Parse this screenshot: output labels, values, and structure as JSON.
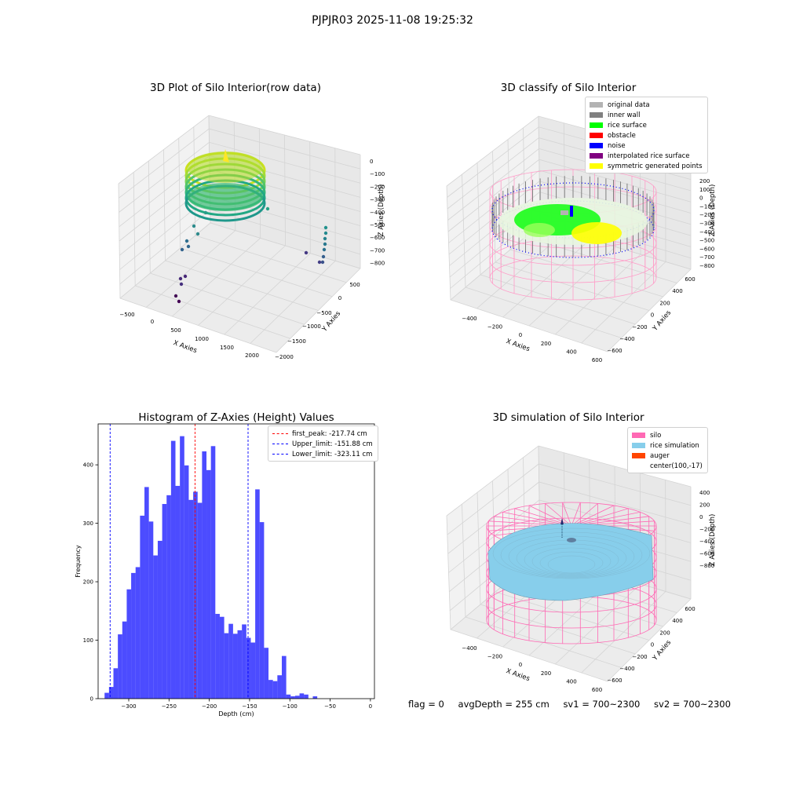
{
  "figure": {
    "suptitle": "PJPJR03 2025-11-08 19:25:32"
  },
  "chart_data": [
    {
      "type": "scatter",
      "title": "3D Plot of Silo Interior(row data)",
      "xlabel": "X Axies",
      "ylabel": "Y Axies",
      "zlabel": "Z Axies (Depth)",
      "x_ticks": [
        "−500",
        "0",
        "500",
        "1000",
        "1500",
        "2000"
      ],
      "y_ticks": [
        "500",
        "0",
        "−500",
        "−1000",
        "−1500",
        "−2000"
      ],
      "z_ticks": [
        "0",
        "−100",
        "−200",
        "−300",
        "−400",
        "−500",
        "−600",
        "−700",
        "−800"
      ],
      "colormap": "viridis",
      "grid": true
    },
    {
      "type": "scatter",
      "title": "3D classify of Silo Interior",
      "xlabel": "X Axies",
      "ylabel": "Y Axies",
      "zlabel": "Z Axies (Depth)",
      "x_ticks": [
        "−400",
        "−200",
        "0",
        "200",
        "400",
        "600"
      ],
      "y_ticks": [
        "600",
        "400",
        "200",
        "0",
        "−200",
        "−400",
        "−600"
      ],
      "z_ticks": [
        "200",
        "100",
        "0",
        "−100",
        "−200",
        "−300",
        "−400",
        "−500",
        "−600",
        "−700",
        "−800"
      ],
      "legend": [
        {
          "label": "original data",
          "color": "#b3b3b3"
        },
        {
          "label": "inner wall",
          "color": "#808080"
        },
        {
          "label": "rice surface",
          "color": "#00ff00"
        },
        {
          "label": "obstacle",
          "color": "#ff0000"
        },
        {
          "label": "noise",
          "color": "#0000ff"
        },
        {
          "label": "interpolated rice surface",
          "color": "#800080"
        },
        {
          "label": "symmetric generated points",
          "color": "#ffff00"
        }
      ],
      "legend_loc": "upper right",
      "grid": true
    },
    {
      "type": "bar",
      "title": "Histogram of Z-Axies (Height) Values",
      "xlabel": "Depth (cm)",
      "ylabel": "Frequency",
      "x_start": -330,
      "bin_width": 5.5,
      "xlim": [
        -338,
        5
      ],
      "ylim": [
        0,
        470
      ],
      "x_ticks": [
        -300,
        -250,
        -200,
        -150,
        -100,
        -50,
        0
      ],
      "x_tick_labels": [
        "−300",
        "−250",
        "−200",
        "−150",
        "−100",
        "−50",
        "0"
      ],
      "y_ticks": [
        0,
        100,
        200,
        300,
        400
      ],
      "values": [
        10,
        20,
        52,
        110,
        132,
        187,
        215,
        225,
        313,
        362,
        303,
        245,
        270,
        333,
        348,
        441,
        364,
        449,
        399,
        340,
        354,
        335,
        423,
        391,
        432,
        145,
        140,
        112,
        128,
        111,
        117,
        127,
        104,
        96,
        358,
        302,
        87,
        32,
        30,
        40,
        73,
        7,
        4,
        5,
        9,
        7,
        0,
        4
      ],
      "bar_color": "#0000ff",
      "vlines": [
        {
          "label": "first_peak: -217.74 cm",
          "x": -217.74,
          "color": "#ff0000"
        },
        {
          "label": "Upper_limit: -151.88 cm",
          "x": -151.88,
          "color": "#0000ff"
        },
        {
          "label": "Lower_limit: -323.11 cm",
          "x": -323.11,
          "color": "#0000ff"
        }
      ],
      "legend_loc": "upper right"
    },
    {
      "type": "scatter",
      "title": "3D simulation of Silo Interior",
      "xlabel": "X Axies",
      "ylabel": "Y Axies",
      "zlabel": "Z Axies (Depth)",
      "x_ticks": [
        "−400",
        "−200",
        "0",
        "200",
        "400",
        "600"
      ],
      "y_ticks": [
        "600",
        "400",
        "200",
        "0",
        "−200",
        "−400",
        "−600"
      ],
      "z_ticks": [
        "400",
        "200",
        "0",
        "−200",
        "−400",
        "−600",
        "−800"
      ],
      "legend": [
        {
          "label": "silo",
          "color": "#ff69b4"
        },
        {
          "label": "rice simulation",
          "color": "#87ceeb"
        },
        {
          "label": "auger",
          "color": "#ff4500"
        },
        {
          "label": "center(100,-17)",
          "color": ""
        }
      ],
      "legend_loc": "upper right",
      "grid": true
    }
  ],
  "status": {
    "flag": "flag = 0",
    "avg_depth": "avgDepth = 255 cm",
    "sv1": "sv1 = 700~2300",
    "sv2": "sv2 = 700~2300"
  }
}
